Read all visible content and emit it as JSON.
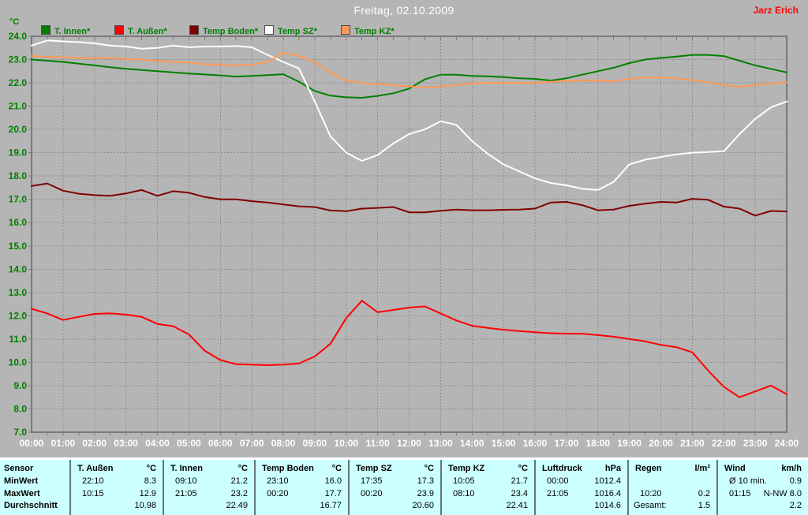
{
  "header": {
    "title": "Freitag, 02.10.2009",
    "author": "Jarz Erich"
  },
  "chart_data": {
    "type": "line",
    "title": "Freitag, 02.10.2009",
    "y_unit": "°C",
    "xlim": [
      0,
      24
    ],
    "ylim": [
      7,
      24
    ],
    "y_tick_step": 1,
    "grid": true,
    "legend_position": "top-left",
    "x_tick_labels": [
      "00:00",
      "01:00",
      "02:00",
      "03:00",
      "04:00",
      "05:00",
      "06:00",
      "07:00",
      "08:00",
      "09:00",
      "10:00",
      "11:00",
      "12:00",
      "13:00",
      "14:00",
      "15:00",
      "16:00",
      "17:00",
      "18:00",
      "19:00",
      "20:00",
      "21:00",
      "22:00",
      "23:00",
      "24:00"
    ],
    "x_hours": [
      0,
      0.5,
      1,
      1.5,
      2,
      2.5,
      3,
      3.5,
      4,
      4.5,
      5,
      5.5,
      6,
      6.5,
      7,
      7.5,
      8,
      8.5,
      9,
      9.5,
      10,
      10.5,
      11,
      11.5,
      12,
      12.5,
      13,
      13.5,
      14,
      14.5,
      15,
      15.5,
      16,
      16.5,
      17,
      17.5,
      18,
      18.5,
      19,
      19.5,
      20,
      20.5,
      21,
      21.5,
      22,
      22.5,
      23,
      23.5,
      24
    ],
    "series": [
      {
        "name": "T. Innen*",
        "color": "#008000",
        "values": [
          23.0,
          22.95,
          22.9,
          22.82,
          22.75,
          22.67,
          22.6,
          22.55,
          22.5,
          22.45,
          22.4,
          22.36,
          22.32,
          22.27,
          22.3,
          22.33,
          22.37,
          22.05,
          21.65,
          21.45,
          21.38,
          21.36,
          21.44,
          21.55,
          21.75,
          22.15,
          22.35,
          22.35,
          22.3,
          22.28,
          22.25,
          22.2,
          22.17,
          22.1,
          22.2,
          22.35,
          22.5,
          22.65,
          22.85,
          23.0,
          23.07,
          23.13,
          23.2,
          23.2,
          23.15,
          22.95,
          22.75,
          22.6,
          22.45
        ]
      },
      {
        "name": "T. Außen*",
        "color": "#ff0000",
        "values": [
          12.3,
          12.1,
          11.82,
          11.95,
          12.08,
          12.1,
          12.05,
          11.95,
          11.65,
          11.55,
          11.2,
          10.5,
          10.1,
          9.92,
          9.9,
          9.88,
          9.9,
          9.95,
          10.25,
          10.8,
          11.9,
          12.65,
          12.15,
          12.25,
          12.35,
          12.4,
          12.1,
          11.8,
          11.57,
          11.48,
          11.4,
          11.34,
          11.29,
          11.25,
          11.23,
          11.23,
          11.17,
          11.1,
          11.0,
          10.9,
          10.75,
          10.65,
          10.43,
          9.65,
          8.95,
          8.5,
          8.75,
          9.0,
          8.63
        ]
      },
      {
        "name": "Temp Boden*",
        "color": "#800000",
        "values": [
          17.57,
          17.68,
          17.37,
          17.24,
          17.18,
          17.15,
          17.25,
          17.4,
          17.15,
          17.35,
          17.28,
          17.1,
          17.0,
          17.0,
          16.92,
          16.86,
          16.78,
          16.7,
          16.67,
          16.52,
          16.49,
          16.6,
          16.63,
          16.67,
          16.44,
          16.44,
          16.51,
          16.56,
          16.53,
          16.53,
          16.55,
          16.56,
          16.6,
          16.86,
          16.89,
          16.75,
          16.53,
          16.56,
          16.72,
          16.81,
          16.89,
          16.86,
          17.02,
          16.98,
          16.69,
          16.6,
          16.3,
          16.5,
          16.48
        ]
      },
      {
        "name": "Temp SZ*",
        "color": "#ffffff",
        "values": [
          23.6,
          23.82,
          23.78,
          23.75,
          23.7,
          23.6,
          23.56,
          23.47,
          23.5,
          23.6,
          23.53,
          23.56,
          23.56,
          23.58,
          23.53,
          23.2,
          22.9,
          22.62,
          21.2,
          19.7,
          19.0,
          18.65,
          18.9,
          19.4,
          19.8,
          20.0,
          20.35,
          20.2,
          19.5,
          18.95,
          18.5,
          18.2,
          17.9,
          17.7,
          17.6,
          17.45,
          17.4,
          17.75,
          18.5,
          18.7,
          18.82,
          18.93,
          19.0,
          19.03,
          19.06,
          19.8,
          20.45,
          20.95,
          21.2
        ]
      },
      {
        "name": "Temp KZ*",
        "color": "#ff9955",
        "values": [
          23.15,
          23.12,
          23.1,
          23.08,
          23.05,
          23.07,
          23.02,
          23.0,
          22.95,
          22.9,
          22.87,
          22.8,
          22.78,
          22.75,
          22.78,
          22.9,
          23.3,
          23.15,
          22.9,
          22.45,
          22.1,
          22.0,
          21.95,
          21.9,
          21.85,
          21.8,
          21.85,
          21.9,
          21.97,
          22.0,
          22.0,
          22.0,
          22.0,
          22.05,
          22.08,
          22.1,
          22.1,
          22.06,
          22.17,
          22.23,
          22.23,
          22.2,
          22.11,
          22.02,
          21.91,
          21.83,
          21.91,
          21.97,
          22.02
        ]
      }
    ],
    "colors": {
      "background": "#b5b5b5",
      "frame": "#7a7a7a",
      "grid": "#8f8f8f",
      "y_axis_text": "#008000",
      "x_axis_text": "#ffffff"
    }
  },
  "stats_table": {
    "row_headers": [
      "Sensor",
      "MinWert",
      "MaxWert",
      "Durchschnitt"
    ],
    "columns": [
      {
        "name": "T. Außen",
        "unit": "°C",
        "min_time": "22:10",
        "min": "8.3",
        "max_time": "10:15",
        "max": "12.9",
        "avg_label": "",
        "avg": "10.98"
      },
      {
        "name": "T. Innen",
        "unit": "°C",
        "min_time": "09:10",
        "min": "21.2",
        "max_time": "21:05",
        "max": "23.2",
        "avg_label": "",
        "avg": "22.49"
      },
      {
        "name": "Temp Boden",
        "unit": "°C",
        "min_time": "23:10",
        "min": "16.0",
        "max_time": "00:20",
        "max": "17.7",
        "avg_label": "",
        "avg": "16.77"
      },
      {
        "name": "Temp SZ",
        "unit": "°C",
        "min_time": "17:35",
        "min": "17.3",
        "max_time": "00:20",
        "max": "23.9",
        "avg_label": "",
        "avg": "20.60"
      },
      {
        "name": "Temp KZ",
        "unit": "°C",
        "min_time": "10:05",
        "min": "21.7",
        "max_time": "08:10",
        "max": "23.4",
        "avg_label": "",
        "avg": "22.41"
      },
      {
        "name": "Luftdruck",
        "unit": "hPa",
        "min_time": "00:00",
        "min": "1012.4",
        "max_time": "21:05",
        "max": "1016.4",
        "avg_label": "",
        "avg": "1014.6"
      },
      {
        "name": "Regen",
        "unit": "l/m²",
        "min_time": "",
        "min": "",
        "max_time": "10:20",
        "max": "0.2",
        "avg_label": "Gesamt:",
        "avg": "1.5"
      },
      {
        "name": "Wind",
        "unit": "km/h",
        "min_time": "Ø 10 min.",
        "min": "0.9",
        "max_time": "01:15",
        "max": "N-NW 8.0",
        "avg_label": "",
        "avg": "2.2"
      }
    ],
    "column_bounds": [
      0,
      88,
      206,
      322,
      441,
      558,
      677,
      795,
      908,
      1024
    ]
  }
}
